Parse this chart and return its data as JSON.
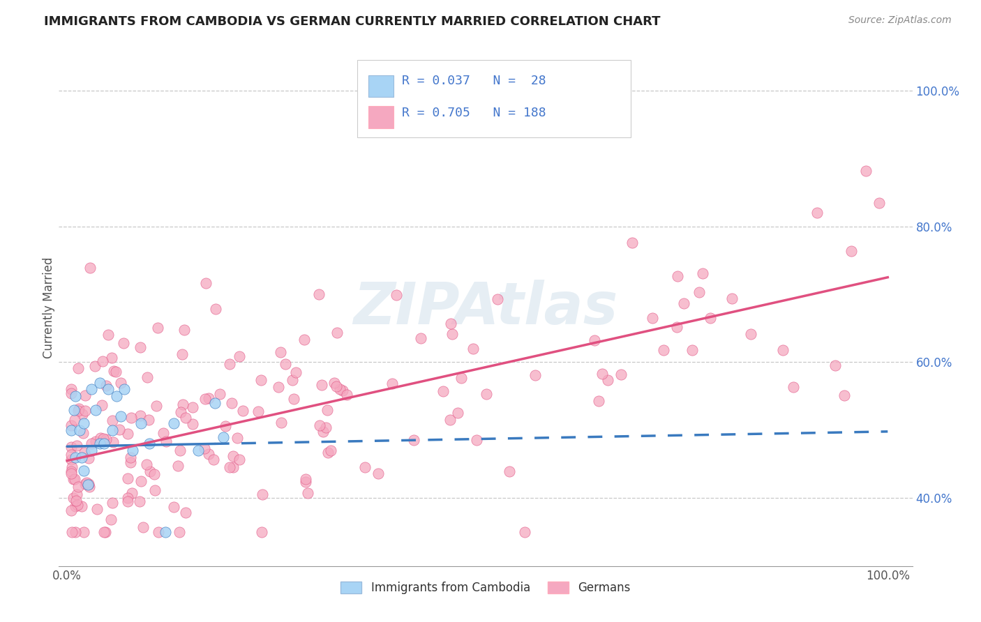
{
  "title": "IMMIGRANTS FROM CAMBODIA VS GERMAN CURRENTLY MARRIED CORRELATION CHART",
  "source": "Source: ZipAtlas.com",
  "ylabel": "Currently Married",
  "legend_label1": "Immigrants from Cambodia",
  "legend_label2": "Germans",
  "R1": 0.037,
  "N1": 28,
  "R2": 0.705,
  "N2": 188,
  "watermark": "ZIPAtlas",
  "color_cambodia": "#a8d4f5",
  "color_cambodia_line": "#3a7abf",
  "color_german": "#f5a8c0",
  "color_german_line": "#e05080",
  "background_color": "#ffffff",
  "title_color": "#222222",
  "legend_color": "#4477cc",
  "yticks": [
    0.4,
    0.6,
    0.8,
    1.0
  ],
  "ytick_labels": [
    "40.0%",
    "60.0%",
    "80.0%",
    "100.0%"
  ],
  "ylim_low": 0.3,
  "ylim_high": 1.06,
  "xlim_low": -0.01,
  "xlim_high": 1.03,
  "cam_line_solid_end": 0.18,
  "cam_line_intercept": 0.476,
  "cam_line_slope": 0.022,
  "ger_line_intercept": 0.455,
  "ger_line_slope": 0.27
}
